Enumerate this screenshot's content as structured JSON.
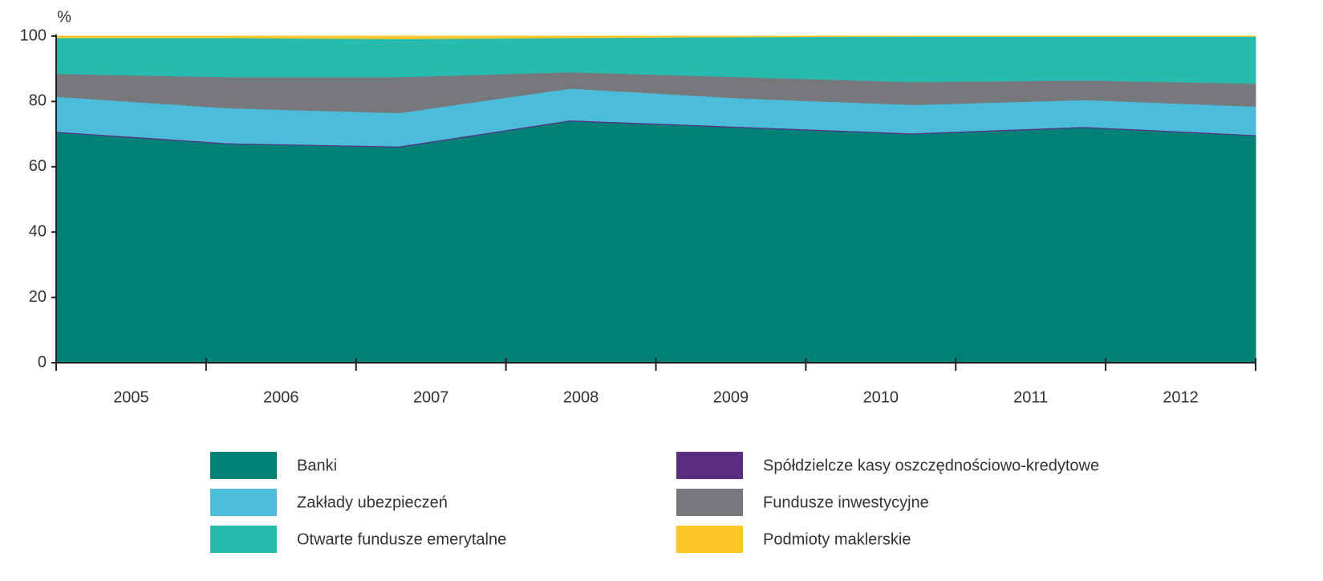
{
  "chart_data": {
    "type": "area",
    "stacked": true,
    "y_label": "%",
    "categories": [
      "2005",
      "2006",
      "2007",
      "2008",
      "2009",
      "2010",
      "2011",
      "2012"
    ],
    "series": [
      {
        "name": "Banki",
        "color": "#008177",
        "values": [
          70.5,
          67,
          66,
          74,
          72,
          70,
          72,
          69.5
        ]
      },
      {
        "name": "Spółdzielcze kasy oszczędnościowo-kredytowe",
        "color": "#5b2d82",
        "values": [
          0.3,
          0.3,
          0.3,
          0.3,
          0.3,
          0.3,
          0.3,
          0.3
        ]
      },
      {
        "name": "Zakłady ubezpieczeń",
        "color": "#4bbcd9",
        "values": [
          10.7,
          10.7,
          10.2,
          9.7,
          8.7,
          8.7,
          8.2,
          8.7
        ]
      },
      {
        "name": "Fundusze inwestycyjne",
        "color": "#77787b",
        "values": [
          7,
          9.5,
          11,
          5,
          6.5,
          7,
          6,
          7
        ]
      },
      {
        "name": "Otwarte fundusze emerytalne",
        "color": "#27bbb0",
        "values": [
          11,
          12,
          11.7,
          10.5,
          12.3,
          13.9,
          13.4,
          14.4
        ]
      },
      {
        "name": "Podmioty maklerskie",
        "color": "#ffc62a",
        "values": [
          0.5,
          0.5,
          0.8,
          0.5,
          0.2,
          0.1,
          0.1,
          0.1
        ]
      }
    ],
    "ylim": [
      0,
      100
    ],
    "yticks": [
      0,
      20,
      40,
      60,
      80,
      100
    ],
    "grid": false
  }
}
